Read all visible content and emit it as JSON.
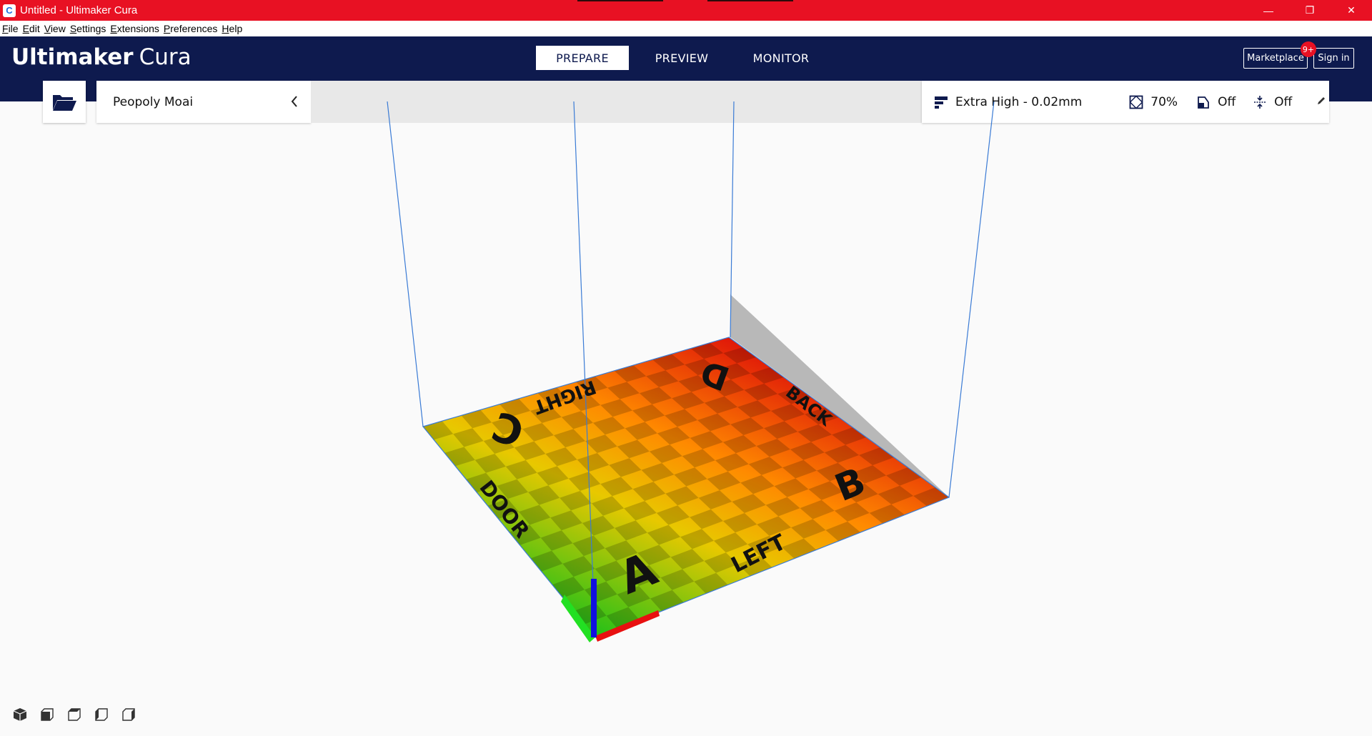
{
  "window": {
    "title": "Untitled - Ultimaker Cura",
    "icon_glyph": "C",
    "minimize_glyph": "—",
    "restore_glyph": "❐",
    "close_glyph": "✕"
  },
  "menu": [
    "File",
    "Edit",
    "View",
    "Settings",
    "Extensions",
    "Preferences",
    "Help"
  ],
  "header": {
    "brand": "Ultimaker",
    "product": "Cura",
    "tabs": [
      "PREPARE",
      "PREVIEW",
      "MONITOR"
    ],
    "active_tab": "PREPARE",
    "marketplace_label": "Marketplace",
    "marketplace_badge": "9+",
    "signin_label": "Sign in"
  },
  "toolbar": {
    "printer_name": "Peopoly Moai",
    "profile": "Extra High - 0.02mm",
    "infill": "70%",
    "support": "Off",
    "adhesion": "Off"
  },
  "build_plate": {
    "corner_labels": [
      "A",
      "B",
      "C",
      "D"
    ],
    "side_labels": [
      "DOOR",
      "RIGHT",
      "BACK",
      "LEFT"
    ]
  },
  "view_buttons": [
    "3d-view-icon",
    "front-view-icon",
    "top-view-icon",
    "left-view-icon",
    "right-view-icon"
  ],
  "colors": {
    "titlebar": "#e81123",
    "header": "#0e1a4e",
    "plate_far": "#e02010",
    "plate_near": "#20c020"
  }
}
